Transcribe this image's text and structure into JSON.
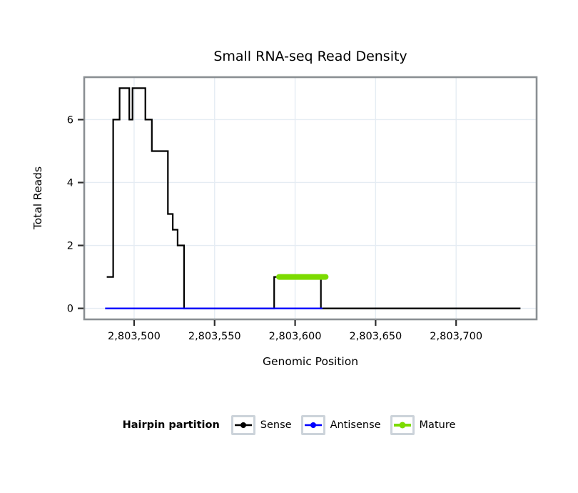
{
  "chart_data": {
    "type": "line",
    "title": "Small RNA-seq Read Density",
    "xlabel": "Genomic Position",
    "ylabel": "Total Reads",
    "xlim": [
      2803469,
      2803750
    ],
    "ylim": [
      -0.35,
      7.35
    ],
    "x_ticks": [
      2803500,
      2803550,
      2803600,
      2803650,
      2803700
    ],
    "x_tick_labels": [
      "2,803,500",
      "2,803,550",
      "2,803,600",
      "2,803,650",
      "2,803,700"
    ],
    "y_ticks": [
      0,
      2,
      4,
      6
    ],
    "grid": true,
    "legend_position": "bottom",
    "series": [
      {
        "name": "Sense",
        "color": "#000000",
        "width": 2.2,
        "points": [
          [
            2803483,
            1
          ],
          [
            2803487,
            1
          ],
          [
            2803487,
            6
          ],
          [
            2803491,
            6
          ],
          [
            2803491,
            7
          ],
          [
            2803497,
            7
          ],
          [
            2803497,
            6
          ],
          [
            2803499,
            6
          ],
          [
            2803499,
            7
          ],
          [
            2803507,
            7
          ],
          [
            2803507,
            6
          ],
          [
            2803511,
            6
          ],
          [
            2803511,
            5
          ],
          [
            2803521,
            5
          ],
          [
            2803521,
            3
          ],
          [
            2803524,
            3
          ],
          [
            2803524,
            2.5
          ],
          [
            2803527,
            2.5
          ],
          [
            2803527,
            2
          ],
          [
            2803531,
            2
          ],
          [
            2803531,
            0
          ],
          [
            2803587,
            0
          ],
          [
            2803587,
            1
          ],
          [
            2803616,
            1
          ],
          [
            2803616,
            0
          ],
          [
            2803740,
            0
          ]
        ]
      },
      {
        "name": "Antisense",
        "color": "#0000FF",
        "width": 2.2,
        "points": [
          [
            2803482,
            0
          ],
          [
            2803617,
            0
          ]
        ]
      },
      {
        "name": "Mature",
        "color": "#7CDB00",
        "width": 8,
        "points": [
          [
            2803590,
            1
          ],
          [
            2803619,
            1
          ]
        ]
      }
    ]
  },
  "legend": {
    "title": "Hairpin partition",
    "items": [
      {
        "label": "Sense",
        "color": "#000000",
        "key_line_width": 2.5,
        "key_dot_radius": 4
      },
      {
        "label": "Antisense",
        "color": "#0000FF",
        "key_line_width": 2.5,
        "key_dot_radius": 4
      },
      {
        "label": "Mature",
        "color": "#7CDB00",
        "key_line_width": 4,
        "key_dot_radius": 4.5
      }
    ]
  }
}
